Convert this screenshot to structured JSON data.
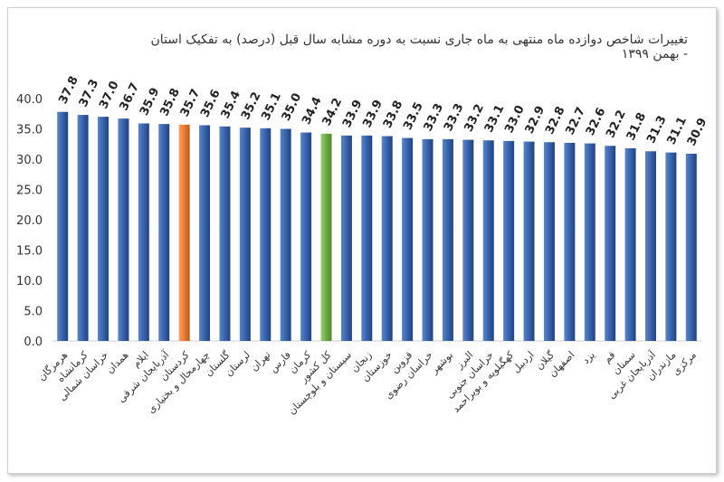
{
  "chart_data": {
    "type": "bar",
    "title": "تغییرات شاخص دوازده ماه منتهی به ماه جاری نسبت به دوره مشابه سال قبل (درصد) به تفکیک استان - بهمن ۱۳۹۹",
    "ylim": [
      0,
      40
    ],
    "yticks": [
      "0.0",
      "5.0",
      "10.0",
      "15.0",
      "20.0",
      "25.0",
      "30.0",
      "35.0",
      "40.0"
    ],
    "grid": false,
    "categories": [
      "هرمزگان",
      "کرمانشاه",
      "خراسان شمالی",
      "همدان",
      "ایلام",
      "آذربایجان شرقی",
      "کردستان",
      "چهارمحال و بختیاری",
      "گلستان",
      "لرستان",
      "تهران",
      "فارس",
      "کرمان",
      "کل کشور",
      "سیستان و بلوچستان",
      "زنجان",
      "خوزستان",
      "قزوین",
      "خراسان رضوی",
      "بوشهر",
      "البرز",
      "خراسان جنوبی",
      "کهگیلویه و بویراحمد",
      "اردبیل",
      "گیلان",
      "اصفهان",
      "یزد",
      "قم",
      "سمنان",
      "آذربایجان غربی",
      "مازندران",
      "مرکزی"
    ],
    "values": [
      37.8,
      37.3,
      37.0,
      36.7,
      35.9,
      35.8,
      35.7,
      35.6,
      35.4,
      35.2,
      35.1,
      35.0,
      34.4,
      34.2,
      33.9,
      33.9,
      33.8,
      33.5,
      33.3,
      33.3,
      33.2,
      33.1,
      33.0,
      32.9,
      32.8,
      32.7,
      32.6,
      32.2,
      31.8,
      31.3,
      31.1,
      30.9
    ],
    "value_labels": [
      "37.8",
      "37.3",
      "37.0",
      "36.7",
      "35.9",
      "35.8",
      "35.7",
      "35.6",
      "35.4",
      "35.2",
      "35.1",
      "35.0",
      "34.4",
      "34.2",
      "33.9",
      "33.9",
      "33.8",
      "33.5",
      "33.3",
      "33.3",
      "33.2",
      "33.1",
      "33.0",
      "32.9",
      "32.8",
      "32.7",
      "32.6",
      "32.2",
      "31.8",
      "31.3",
      "31.1",
      "30.9"
    ],
    "colors": {
      "default": "#2F5597",
      "highlight_orange": "#ED7D31",
      "highlight_green": "#70AD47"
    },
    "highlights": {
      "کردستان": "highlight_orange",
      "کل کشور": "highlight_green"
    }
  }
}
